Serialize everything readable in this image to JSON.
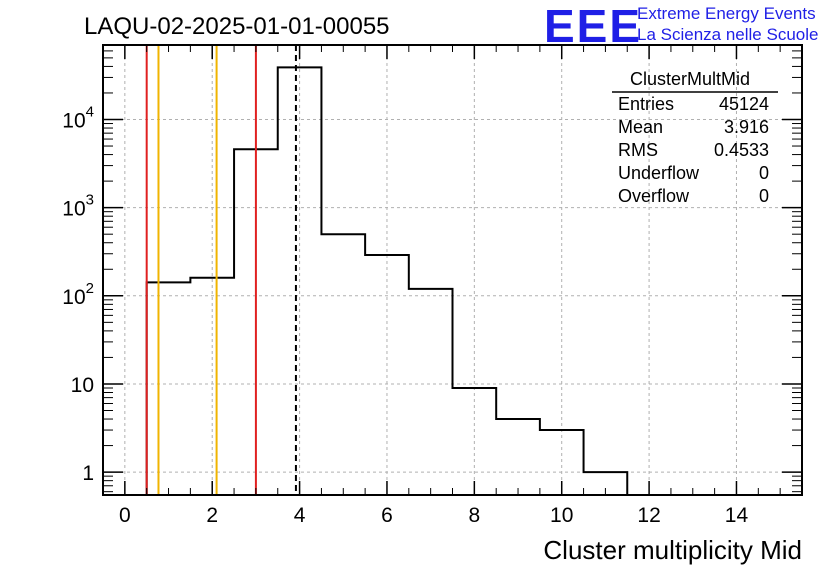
{
  "plot_title": "LAQU-02-2025-01-01-00055",
  "logo": {
    "acronym": "EEE",
    "line1": "Extreme Energy Events",
    "line2": "La Scienza nelle Scuole",
    "color": "#1f1fe6"
  },
  "stats_box": {
    "name": "ClusterMultMid",
    "rows": [
      {
        "label": "Entries",
        "value": "45124"
      },
      {
        "label": "Mean",
        "value": "3.916"
      },
      {
        "label": "RMS",
        "value": "0.4533"
      },
      {
        "label": "Underflow",
        "value": "0"
      },
      {
        "label": "Overflow",
        "value": "0"
      }
    ]
  },
  "colors": {
    "histogram": "#000000",
    "red_line": "#e02020",
    "orange_line": "#f0b400",
    "grid": "#b0b0b0"
  },
  "chart_data": {
    "type": "bar",
    "histogram_style": "step",
    "xlabel": "Cluster multiplicity Mid",
    "ylabel": "",
    "xlim": [
      -0.5,
      15.5
    ],
    "ylim": [
      0.55,
      70000
    ],
    "y_scale": "log",
    "grid": true,
    "x_ticks": [
      0,
      2,
      4,
      6,
      8,
      10,
      12,
      14
    ],
    "x_tick_labels": [
      "0",
      "2",
      "4",
      "6",
      "8",
      "10",
      "12",
      "14"
    ],
    "y_ticks": [
      1,
      10,
      100,
      1000,
      10000
    ],
    "y_tick_labels": [
      {
        "base": "1",
        "exp": ""
      },
      {
        "base": "10",
        "exp": ""
      },
      {
        "base": "10",
        "exp": "2"
      },
      {
        "base": "10",
        "exp": "3"
      },
      {
        "base": "10",
        "exp": "4"
      }
    ],
    "bins": [
      {
        "x0": 0.5,
        "x1": 1.5,
        "value": 142
      },
      {
        "x0": 1.5,
        "x1": 2.5,
        "value": 160
      },
      {
        "x0": 2.5,
        "x1": 3.5,
        "value": 4600
      },
      {
        "x0": 3.5,
        "x1": 4.5,
        "value": 39000
      },
      {
        "x0": 4.5,
        "x1": 5.5,
        "value": 500
      },
      {
        "x0": 5.5,
        "x1": 6.5,
        "value": 290
      },
      {
        "x0": 6.5,
        "x1": 7.5,
        "value": 120
      },
      {
        "x0": 7.5,
        "x1": 8.5,
        "value": 9
      },
      {
        "x0": 8.5,
        "x1": 9.5,
        "value": 4
      },
      {
        "x0": 9.5,
        "x1": 10.5,
        "value": 3
      },
      {
        "x0": 10.5,
        "x1": 11.5,
        "value": 1
      }
    ],
    "markers": [
      {
        "x": 0.5,
        "style": "red"
      },
      {
        "x": 0.77,
        "style": "orange"
      },
      {
        "x": 2.1,
        "style": "orange"
      },
      {
        "x": 3.0,
        "style": "red"
      },
      {
        "x": 3.916,
        "style": "mean-dashed"
      }
    ],
    "legend": "top-right"
  }
}
